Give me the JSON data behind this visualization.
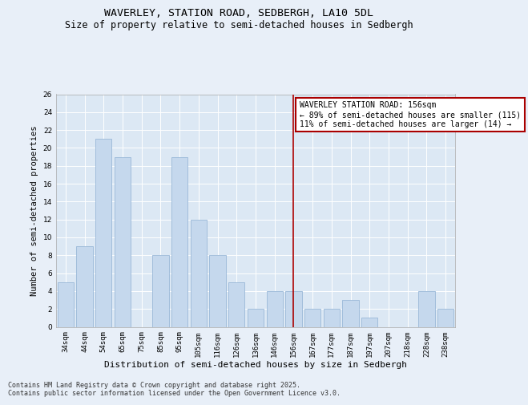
{
  "title": "WAVERLEY, STATION ROAD, SEDBERGH, LA10 5DL",
  "subtitle": "Size of property relative to semi-detached houses in Sedbergh",
  "xlabel": "Distribution of semi-detached houses by size in Sedbergh",
  "ylabel": "Number of semi-detached properties",
  "categories": [
    "34sqm",
    "44sqm",
    "54sqm",
    "65sqm",
    "75sqm",
    "85sqm",
    "95sqm",
    "105sqm",
    "116sqm",
    "126sqm",
    "136sqm",
    "146sqm",
    "156sqm",
    "167sqm",
    "177sqm",
    "187sqm",
    "197sqm",
    "207sqm",
    "218sqm",
    "228sqm",
    "238sqm"
  ],
  "values": [
    5,
    9,
    21,
    19,
    0,
    8,
    19,
    12,
    8,
    5,
    2,
    4,
    4,
    2,
    2,
    3,
    1,
    0,
    0,
    4,
    2
  ],
  "bar_color": "#c5d8ed",
  "bar_edge_color": "#9ab8d8",
  "vline_x_index": 12,
  "vline_color": "#aa0000",
  "annotation_title": "WAVERLEY STATION ROAD: 156sqm",
  "annotation_line1": "← 89% of semi-detached houses are smaller (115)",
  "annotation_line2": "11% of semi-detached houses are larger (14) →",
  "annotation_box_facecolor": "#ffffff",
  "annotation_box_edgecolor": "#aa0000",
  "ylim": [
    0,
    26
  ],
  "yticks": [
    0,
    2,
    4,
    6,
    8,
    10,
    12,
    14,
    16,
    18,
    20,
    22,
    24,
    26
  ],
  "footer_line1": "Contains HM Land Registry data © Crown copyright and database right 2025.",
  "footer_line2": "Contains public sector information licensed under the Open Government Licence v3.0.",
  "bg_color": "#e8eff8",
  "plot_bg_color": "#dce8f4",
  "grid_color": "#ffffff",
  "title_fontsize": 9.5,
  "subtitle_fontsize": 8.5,
  "xlabel_fontsize": 8,
  "ylabel_fontsize": 7.5,
  "tick_fontsize": 6.5,
  "annotation_fontsize": 7,
  "footer_fontsize": 6
}
